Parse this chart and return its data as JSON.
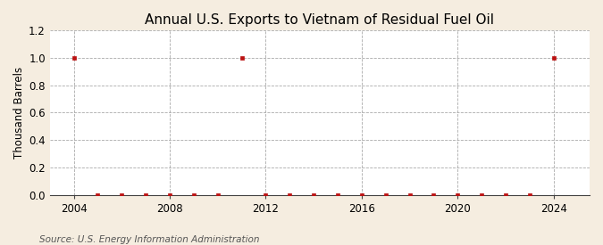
{
  "title": "Annual U.S. Exports to Vietnam of Residual Fuel Oil",
  "ylabel": "Thousand Barrels",
  "source_text": "Source: U.S. Energy Information Administration",
  "figure_background_color": "#f5ede0",
  "plot_background_color": "#ffffff",
  "years": [
    2004,
    2005,
    2006,
    2007,
    2008,
    2009,
    2010,
    2011,
    2012,
    2013,
    2014,
    2015,
    2016,
    2017,
    2018,
    2019,
    2020,
    2021,
    2022,
    2023,
    2024
  ],
  "values": [
    1.0,
    0.0,
    0.0,
    0.0,
    0.0,
    0.0,
    0.0,
    1.0,
    0.0,
    0.0,
    0.0,
    0.0,
    0.0,
    0.0,
    0.0,
    0.0,
    0.0,
    0.0,
    0.0,
    0.0,
    1.0
  ],
  "marker_color": "#bb1111",
  "marker": "s",
  "marker_size": 3.5,
  "grid_color": "#aaaaaa",
  "grid_style": "--",
  "xlim": [
    2003.0,
    2025.5
  ],
  "ylim": [
    0.0,
    1.2
  ],
  "xticks": [
    2004,
    2008,
    2012,
    2016,
    2020,
    2024
  ],
  "yticks": [
    0.0,
    0.2,
    0.4,
    0.6,
    0.8,
    1.0,
    1.2
  ],
  "title_fontsize": 11,
  "axis_fontsize": 8.5,
  "tick_fontsize": 8.5,
  "source_fontsize": 7.5
}
